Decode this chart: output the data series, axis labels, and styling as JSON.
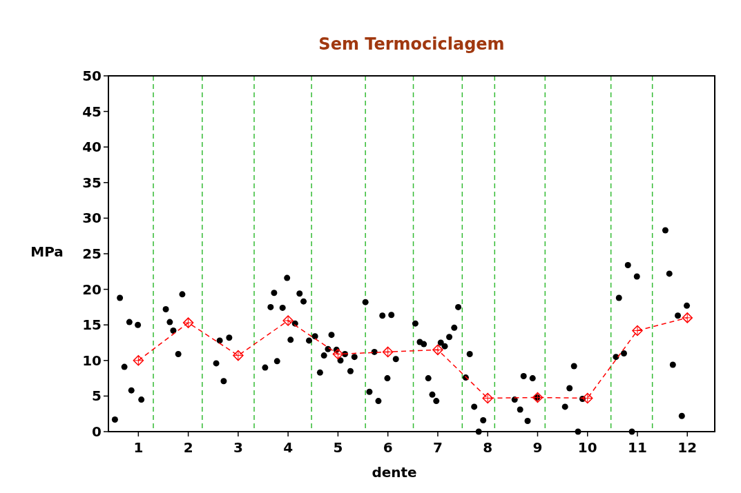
{
  "chart_data": {
    "type": "scatter",
    "title": "Sem Termociclagem",
    "xlabel": "dente",
    "ylabel": "MPa",
    "xlim": [
      0.4,
      12.55
    ],
    "ylim": [
      0,
      50
    ],
    "xticks": [
      1,
      2,
      3,
      4,
      5,
      6,
      7,
      8,
      9,
      10,
      11,
      12
    ],
    "yticks": [
      0,
      5,
      10,
      15,
      20,
      25,
      30,
      35,
      40,
      45,
      50
    ],
    "grid": false,
    "series": [
      {
        "color": "#000000",
        "marker": "circle",
        "x": [
          0.53,
          0.63,
          0.72,
          0.86,
          0.82,
          0.99,
          1.06,
          1.55,
          1.63,
          1.7,
          1.8,
          1.88,
          2.56,
          2.63,
          2.71,
          2.82,
          3.54,
          3.65,
          3.72,
          3.78,
          3.89,
          3.98,
          4.05,
          4.14,
          4.23,
          4.31,
          4.42,
          4.54,
          4.64,
          4.72,
          4.8,
          4.87,
          4.97,
          5.05,
          5.14,
          5.25,
          5.33,
          5.55,
          5.63,
          5.73,
          5.81,
          5.89,
          5.99,
          6.07,
          6.16,
          6.55,
          6.64,
          6.72,
          6.81,
          6.89,
          6.97,
          7.06,
          7.14,
          7.23,
          7.33,
          7.41,
          7.56,
          7.64,
          7.73,
          7.82,
          7.91,
          8.54,
          8.65,
          8.72,
          8.8,
          8.9,
          8.99,
          9.55,
          9.64,
          9.73,
          9.81,
          9.9,
          10.57,
          10.63,
          10.73,
          10.81,
          10.89,
          10.99,
          11.56,
          11.64,
          11.71,
          11.81,
          11.89,
          11.99
        ],
        "values": [
          1.7,
          18.8,
          9.1,
          5.8,
          15.4,
          15.0,
          4.5,
          17.2,
          15.4,
          14.2,
          10.9,
          19.3,
          9.6,
          12.8,
          7.1,
          13.2,
          9.0,
          17.5,
          19.5,
          9.9,
          17.4,
          21.6,
          12.9,
          15.2,
          19.4,
          18.3,
          12.8,
          13.4,
          8.3,
          10.7,
          11.6,
          13.6,
          11.5,
          10.0,
          10.9,
          8.5,
          10.5,
          18.2,
          5.6,
          11.2,
          4.3,
          16.3,
          7.5,
          16.4,
          10.2,
          15.2,
          12.6,
          12.3,
          7.5,
          5.2,
          4.3,
          12.5,
          12.0,
          13.3,
          14.6,
          17.5,
          7.6,
          10.9,
          3.5,
          0,
          1.6,
          4.5,
          3.1,
          7.8,
          1.5,
          7.5,
          4.8,
          3.5,
          6.1,
          9.2,
          0,
          4.6,
          10.5,
          18.8,
          11.0,
          23.4,
          0,
          21.8,
          28.3,
          22.2,
          9.4,
          16.3,
          2.2,
          17.7
        ]
      },
      {
        "type": "line",
        "color": "#ff0000",
        "marker": "diamond",
        "line_style": "dashed",
        "x": [
          1,
          2,
          3,
          4,
          5,
          6,
          7,
          8,
          9,
          10,
          11,
          12
        ],
        "values": [
          10.0,
          15.3,
          10.7,
          15.6,
          10.9,
          11.2,
          11.5,
          4.7,
          4.8,
          4.7,
          14.2,
          16.0
        ]
      }
    ],
    "ref_lines": [
      {
        "axis": "x",
        "value": 1.3,
        "color": "#33bb33",
        "line_style": "dashed"
      },
      {
        "axis": "x",
        "value": 2.28,
        "color": "#33bb33",
        "line_style": "dashed"
      },
      {
        "axis": "x",
        "value": 3.32,
        "color": "#33bb33",
        "line_style": "dashed"
      },
      {
        "axis": "x",
        "value": 4.47,
        "color": "#33bb33",
        "line_style": "dashed"
      },
      {
        "axis": "x",
        "value": 5.55,
        "color": "#33bb33",
        "line_style": "dashed"
      },
      {
        "axis": "x",
        "value": 6.51,
        "color": "#33bb33",
        "line_style": "dashed"
      },
      {
        "axis": "x",
        "value": 7.49,
        "color": "#33bb33",
        "line_style": "dashed"
      },
      {
        "axis": "x",
        "value": 8.14,
        "color": "#33bb33",
        "line_style": "dashed"
      },
      {
        "axis": "x",
        "value": 9.15,
        "color": "#33bb33",
        "line_style": "dashed"
      },
      {
        "axis": "x",
        "value": 10.47,
        "color": "#33bb33",
        "line_style": "dashed"
      },
      {
        "axis": "x",
        "value": 11.3,
        "color": "#33bb33",
        "line_style": "dashed"
      }
    ]
  }
}
